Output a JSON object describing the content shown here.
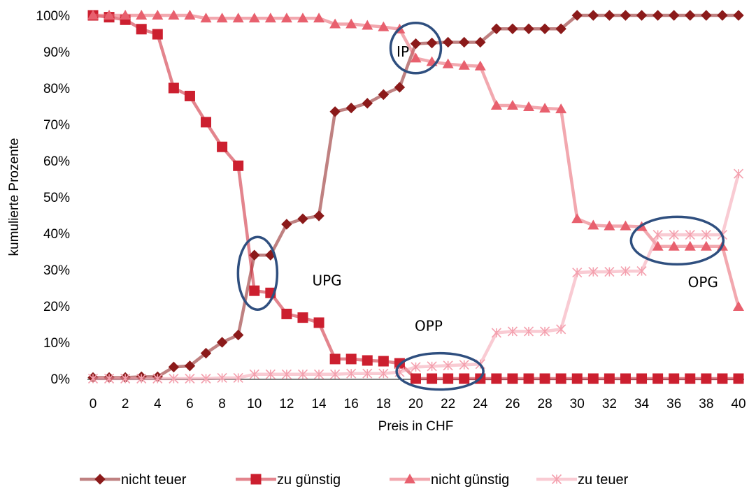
{
  "chart_data": {
    "type": "line",
    "xlabel": "Preis in CHF",
    "ylabel": "kumulierte Prozente",
    "xlim": [
      0,
      40
    ],
    "ylim": [
      0,
      100
    ],
    "x_tick_labels": [
      "0",
      "2",
      "4",
      "6",
      "8",
      "10",
      "12",
      "14",
      "16",
      "18",
      "20",
      "22",
      "24",
      "26",
      "28",
      "30",
      "32",
      "34",
      "36",
      "38",
      "40"
    ],
    "y_tick_labels": [
      "0%",
      "10%",
      "20%",
      "30%",
      "40%",
      "50%",
      "60%",
      "70%",
      "80%",
      "90%",
      "100%"
    ],
    "grid": false,
    "legend_position": "bottom",
    "x": [
      0,
      1,
      2,
      3,
      4,
      5,
      6,
      7,
      8,
      9,
      10,
      11,
      12,
      13,
      14,
      15,
      16,
      17,
      18,
      19,
      20,
      21,
      22,
      23,
      24,
      25,
      26,
      27,
      28,
      29,
      30,
      31,
      32,
      33,
      34,
      35,
      36,
      37,
      38,
      39,
      40
    ],
    "series": [
      {
        "name": "nicht teuer",
        "color": "#8b1a1a",
        "marker": "diamond",
        "values": [
          0.3,
          0.3,
          0.3,
          0.5,
          0.5,
          3.2,
          3.5,
          7,
          10,
          12,
          34,
          34,
          42.5,
          44,
          44.8,
          73.5,
          74.5,
          75.8,
          78.2,
          80.2,
          92.2,
          92.4,
          92.6,
          92.6,
          92.6,
          96.3,
          96.3,
          96.3,
          96.3,
          96.3,
          100,
          100,
          100,
          100,
          100,
          100,
          100,
          100,
          100,
          100,
          100
        ]
      },
      {
        "name": "zu günstig",
        "color": "#cc1f2f",
        "marker": "square",
        "values": [
          100,
          99.5,
          98.8,
          96.2,
          94.8,
          80,
          77.8,
          70.6,
          63.8,
          58.6,
          24.2,
          23.6,
          17.8,
          16.8,
          15.4,
          5.4,
          5.4,
          5,
          4.8,
          4.2,
          0,
          0,
          0,
          0,
          0,
          0,
          0,
          0,
          0,
          0,
          0,
          0,
          0,
          0,
          0,
          0,
          0,
          0,
          0,
          0,
          0
        ]
      },
      {
        "name": "nicht günstig",
        "color": "#e8606e",
        "marker": "triangle",
        "values": [
          100,
          100,
          100,
          100,
          100,
          100,
          100,
          99.2,
          99.2,
          99.2,
          99.2,
          99.2,
          99.2,
          99.2,
          99.2,
          97.6,
          97.6,
          97.2,
          96.8,
          96.2,
          88.2,
          87.2,
          86.6,
          86.2,
          86,
          75.2,
          75.2,
          74.8,
          74.4,
          74.2,
          44,
          42.2,
          42,
          42,
          41.8,
          36.4,
          36.4,
          36.4,
          36.4,
          36.4,
          19.8
        ]
      },
      {
        "name": "zu teuer",
        "color": "#f4a0ae",
        "marker": "asterisk",
        "values": [
          0,
          0,
          0,
          0,
          0,
          0,
          0,
          0,
          0.2,
          0.2,
          1.2,
          1.2,
          1.2,
          1.2,
          1.2,
          1.2,
          1.4,
          1.4,
          1.4,
          1.8,
          3.2,
          3.4,
          3.6,
          3.8,
          4,
          12.6,
          13,
          13,
          13,
          13.6,
          29.2,
          29.4,
          29.4,
          29.6,
          29.6,
          39.6,
          39.6,
          39.6,
          39.6,
          39.6,
          56.4
        ]
      }
    ],
    "annotations": [
      {
        "label": "IP",
        "x": 19.2,
        "y": 90
      },
      {
        "label": "UPG",
        "x": 14.5,
        "y": 27
      },
      {
        "label": "OPP",
        "x": 20.8,
        "y": 14.5
      },
      {
        "label": "OPG",
        "x": 37.8,
        "y": 26.5
      }
    ],
    "highlight_circles": [
      {
        "center_x": 20,
        "center_y": 91
      },
      {
        "center_x": 10.2,
        "center_y": 29
      },
      {
        "center_x": 21.5,
        "center_y": 2
      },
      {
        "center_x": 36.2,
        "center_y": 38
      }
    ],
    "highlight_color": "#2f4f7f"
  }
}
